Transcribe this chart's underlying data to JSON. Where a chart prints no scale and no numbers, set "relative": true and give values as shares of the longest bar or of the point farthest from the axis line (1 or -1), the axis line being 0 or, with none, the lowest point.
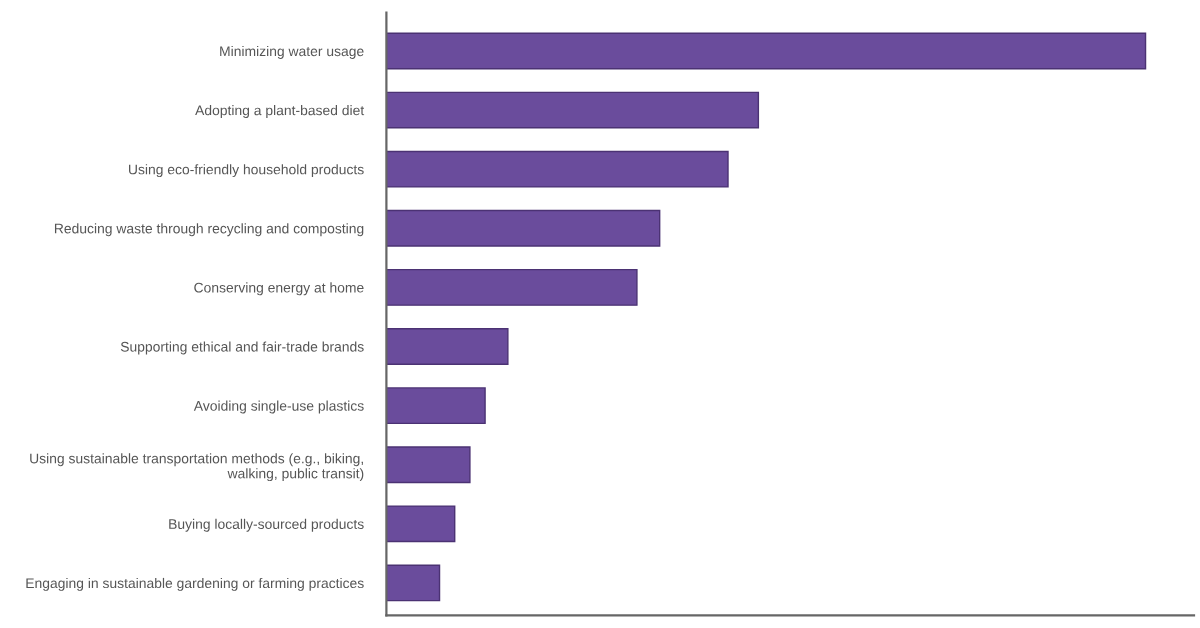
{
  "chart_data": {
    "type": "bar",
    "orientation": "horizontal",
    "relative": true,
    "color": "#6a4c9c",
    "categories": [
      "Minimizing water usage",
      "Adopting a plant-based diet",
      "Using eco-friendly household products",
      "Reducing waste through recycling and composting",
      "Conserving energy at home",
      "Supporting ethical and fair-trade brands",
      "Avoiding single-use plastics",
      "Using sustainable transportation methods (e.g., biking, walking, public transit)",
      "Buying locally-sourced products",
      "Engaging in sustainable gardening or farming practices"
    ],
    "values": [
      1,
      0.49,
      0.45,
      0.36,
      0.33,
      0.16,
      0.13,
      0.11,
      0.09,
      0.07
    ]
  }
}
